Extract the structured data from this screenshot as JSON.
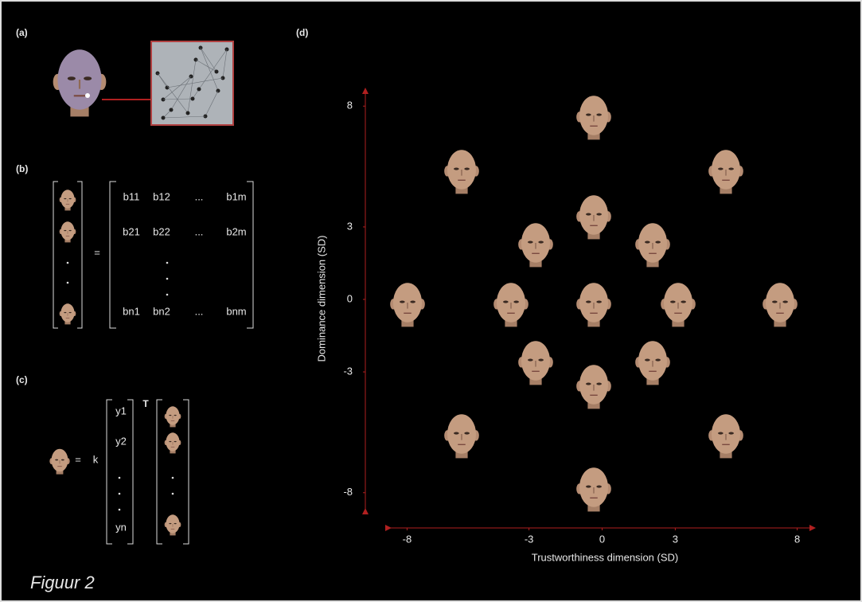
{
  "panels": {
    "a": {
      "label": "(a)"
    },
    "b": {
      "label": "(b)",
      "equals": "=",
      "matrix": [
        [
          "b11",
          "b12",
          "...",
          "b1m"
        ],
        [
          "b21",
          "b22",
          "...",
          "b2m"
        ],
        [
          "bn1",
          "bn2",
          "...",
          "bnm"
        ]
      ]
    },
    "c": {
      "label": "(c)",
      "equals": "=",
      "k": "k",
      "transpose": "T",
      "vector": [
        "y1",
        "y2",
        "yn"
      ]
    },
    "d": {
      "label": "(d)",
      "xlabel": "Trustworthiness dimension (SD)",
      "ylabel": "Dominance dimension (SD)",
      "xlim": [
        -8.7,
        8.7
      ],
      "ylim": [
        -8.7,
        8.7
      ],
      "xticks": [
        -8,
        -3,
        0,
        3,
        8
      ],
      "yticks": [
        -8,
        -3,
        0,
        3,
        8
      ]
    }
  },
  "caption": "Figuur 2"
}
